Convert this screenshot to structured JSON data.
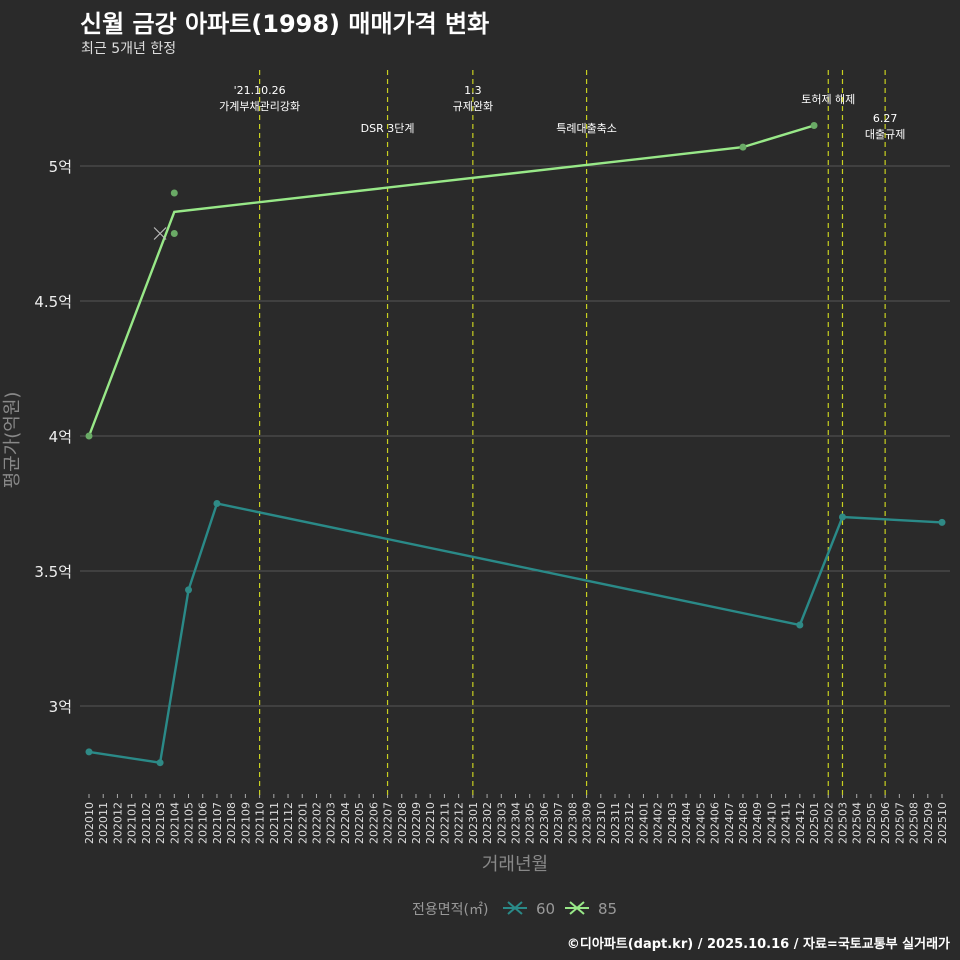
{
  "title": "신월 금강 아파트(1998) 매매가격 변화",
  "subtitle": "최근 5개년 한정",
  "caption": "©디아파트(dapt.kr) / 2025.10.16 / 자료=국토교통부 실거래가",
  "colors": {
    "bg": "#2a2a2a",
    "grid": "#555555",
    "s60": "#2a8a88",
    "s85": "#98e888",
    "pt60": "#2f8a86",
    "pt85": "#6aaa66",
    "vline": "#c8d020"
  },
  "chart_data": {
    "type": "line",
    "xlabel": "거래년월",
    "ylabel": "평균가(억원)",
    "ylim": [
      2.68,
      5.35
    ],
    "yticks": [
      3,
      3.5,
      4,
      4.5,
      5
    ],
    "ytick_labels": [
      "3억",
      "3.5억",
      "4억",
      "4.5억",
      "5억"
    ],
    "x": [
      "202010",
      "202011",
      "202012",
      "202101",
      "202102",
      "202103",
      "202104",
      "202105",
      "202106",
      "202107",
      "202108",
      "202109",
      "202110",
      "202111",
      "202112",
      "202201",
      "202202",
      "202203",
      "202204",
      "202205",
      "202206",
      "202207",
      "202208",
      "202209",
      "202210",
      "202211",
      "202212",
      "202301",
      "202302",
      "202303",
      "202304",
      "202305",
      "202306",
      "202307",
      "202308",
      "202309",
      "202310",
      "202311",
      "202312",
      "202401",
      "202402",
      "202403",
      "202404",
      "202405",
      "202406",
      "202407",
      "202408",
      "202409",
      "202410",
      "202411",
      "202412",
      "202501",
      "202502",
      "202503",
      "202504",
      "202505",
      "202506",
      "202507",
      "202508",
      "202509",
      "202510"
    ],
    "legend_title": "전용면적(㎡)",
    "legend_position": "bottom",
    "series": [
      {
        "name": "60",
        "line": [
          [
            "202010",
            2.83
          ],
          [
            "202103",
            2.79
          ],
          [
            "202105",
            3.43
          ],
          [
            "202107",
            3.75
          ],
          [
            "202412",
            3.3
          ],
          [
            "202503",
            3.7
          ],
          [
            "202510",
            3.68
          ]
        ],
        "points": [
          [
            "202010",
            2.83
          ],
          [
            "202103",
            2.79
          ],
          [
            "202105",
            3.43
          ],
          [
            "202107",
            3.75
          ],
          [
            "202412",
            3.3
          ],
          [
            "202503",
            3.7
          ],
          [
            "202510",
            3.68
          ]
        ]
      },
      {
        "name": "85",
        "line": [
          [
            "202010",
            4.0
          ],
          [
            "202104",
            4.83
          ],
          [
            "202408",
            5.07
          ],
          [
            "202501",
            5.15
          ]
        ],
        "points": [
          [
            "202010",
            4.0
          ],
          [
            "202104",
            4.9
          ],
          [
            "202104",
            4.75
          ],
          [
            "202408",
            5.07
          ],
          [
            "202501",
            5.15
          ]
        ],
        "crosses": [
          [
            "202103",
            4.75
          ]
        ]
      }
    ],
    "events": [
      {
        "x": "202110",
        "lines": [
          "'21.10.26",
          "가계부채관리강화"
        ],
        "level": 0
      },
      {
        "x": "202207",
        "lines": [
          "DSR 3단계"
        ],
        "level": 2
      },
      {
        "x": "202301",
        "lines": [
          "1.3",
          "규제완화"
        ],
        "level": 0
      },
      {
        "x": "202309",
        "lines": [
          "특례대출축소"
        ],
        "level": 2
      },
      {
        "x": "202502",
        "lines": [
          "토허제 해제"
        ],
        "level": 1,
        "offset": 1
      },
      {
        "x": "202503",
        "lines": [],
        "level": 1
      },
      {
        "x": "202506",
        "lines": [
          "6.27",
          "대출규제"
        ],
        "level": 1.6
      }
    ]
  }
}
